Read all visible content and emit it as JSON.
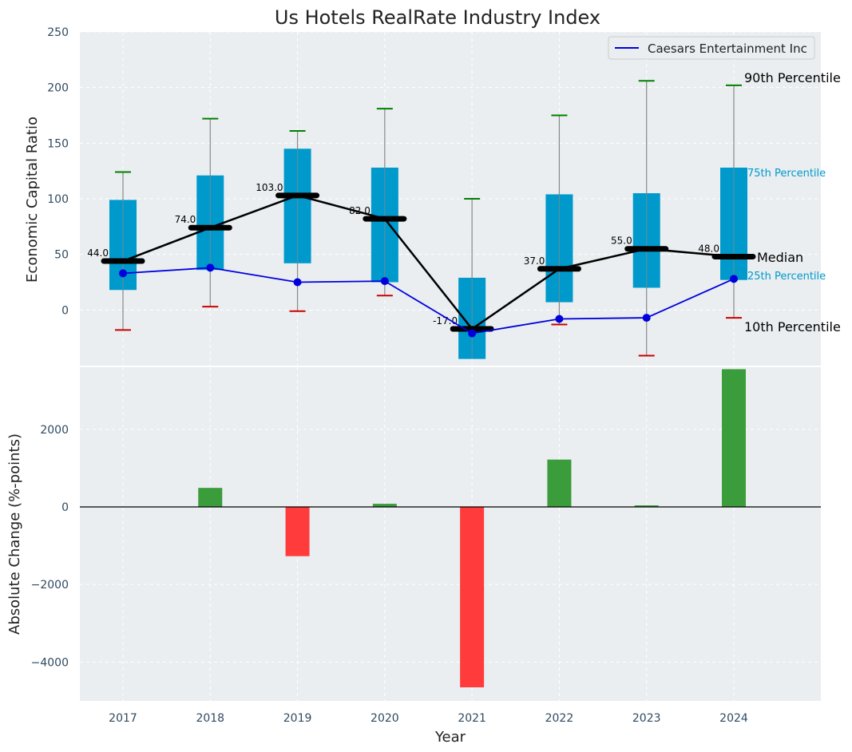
{
  "chart_data": [
    {
      "type": "box",
      "title": "Us Hotels RealRate Industry Index",
      "ylabel": "Economic Capital Ratio",
      "ylim": [
        -50,
        250
      ],
      "yticks": [
        0,
        50,
        100,
        150,
        200,
        250
      ],
      "categories": [
        "2017",
        "2018",
        "2019",
        "2020",
        "2021",
        "2022",
        "2023",
        "2024"
      ],
      "p10": [
        -18,
        3,
        -1,
        13,
        -15,
        -13,
        -41,
        -7
      ],
      "p25": [
        18,
        36,
        42,
        25,
        -44,
        7,
        20,
        27
      ],
      "median": [
        44,
        74,
        103,
        82,
        -17,
        37,
        55,
        48
      ],
      "p75": [
        99,
        121,
        145,
        128,
        29,
        104,
        105,
        128
      ],
      "p90": [
        124,
        172,
        161,
        181,
        100,
        175,
        206,
        202
      ],
      "median_labels": [
        "44.0",
        "74.0",
        "103.0",
        "82.0",
        "-17.0",
        "37.0",
        "55.0",
        "48.0"
      ],
      "company": {
        "name": "Caesars Entertainment Inc",
        "values": [
          33,
          38,
          25,
          26,
          -21,
          -8,
          -7,
          28
        ]
      },
      "annotations": {
        "p90": "90th Percentile",
        "p75": "75th Percentile",
        "median": "Median",
        "p25": "25th Percentile",
        "p10": "10th Percentile"
      },
      "legend_position": "top-right"
    },
    {
      "type": "bar",
      "ylabel": "Absolute Change (%-points)",
      "xlabel": "Year",
      "ylim": [
        -5000,
        3600
      ],
      "yticks": [
        -4000,
        -2000,
        0,
        2000
      ],
      "ytick_labels": [
        "−4000",
        "−2000",
        "0",
        "2000"
      ],
      "categories": [
        "2017",
        "2018",
        "2019",
        "2020",
        "2021",
        "2022",
        "2023",
        "2024"
      ],
      "values": [
        0,
        490,
        -1270,
        80,
        -4650,
        1220,
        40,
        3550
      ]
    }
  ],
  "colors": {
    "panel_bg": "#eaeef0",
    "box": "#0099cc",
    "median": "#000000",
    "company": "#0000dd",
    "p90_cap": "#008000",
    "p10_cap": "#cc0000",
    "whisker": "#888888",
    "bar_pos": "#3a9c3a",
    "bar_neg": "#ff3b3b",
    "tick_text": "#2f4a60"
  }
}
